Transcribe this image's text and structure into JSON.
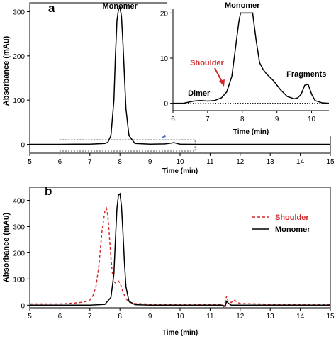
{
  "chart_data": [
    {
      "panel": "a",
      "type": "line",
      "xlabel": "Time (min)",
      "ylabel": "Absorbance (mAu)",
      "xlim": [
        5,
        15
      ],
      "ylim": [
        -20,
        320
      ],
      "xticks": [
        5,
        6,
        7,
        8,
        9,
        10,
        11,
        12,
        13,
        14,
        15
      ],
      "yticks": [
        0,
        100,
        200,
        300
      ],
      "annotations": [
        "Monomer"
      ],
      "series": [
        {
          "color": "#000000",
          "x": [
            5,
            6,
            6.5,
            6.8,
            7.0,
            7.5,
            7.6,
            7.7,
            7.8,
            7.85,
            7.9,
            7.95,
            8.0,
            8.05,
            8.1,
            8.2,
            8.3,
            8.5,
            9.0,
            9.5,
            9.7,
            9.8,
            9.9,
            10.0,
            10.5,
            15
          ],
          "y": [
            0,
            0,
            0.5,
            0.6,
            0.5,
            2,
            5,
            20,
            100,
            200,
            280,
            305,
            310,
            290,
            230,
            80,
            20,
            2,
            0.5,
            1,
            3,
            4,
            2,
            0.5,
            0,
            0
          ]
        }
      ],
      "zoom_box_x": [
        6,
        10.5
      ],
      "inset": {
        "type": "line",
        "xlabel": "Time (min)",
        "xlim": [
          6,
          10.5
        ],
        "ylim": [
          -1,
          21
        ],
        "xticks": [
          6,
          7,
          8,
          9,
          10
        ],
        "yticks": [
          0,
          10,
          20
        ],
        "annotations": [
          "Monomer",
          "Shoulder",
          "Dimer",
          "Fragments"
        ],
        "baseline": 0,
        "series": [
          {
            "color": "#000000",
            "x": [
              6.0,
              6.3,
              6.6,
              6.8,
              7.0,
              7.2,
              7.4,
              7.55,
              7.7,
              7.8,
              7.9,
              7.95,
              8.05,
              8.2,
              8.3,
              8.4,
              8.5,
              8.6,
              8.7,
              8.9,
              9.1,
              9.3,
              9.5,
              9.6,
              9.7,
              9.8,
              9.9,
              10.0,
              10.1,
              10.3,
              10.5
            ],
            "y": [
              0,
              0,
              0.5,
              0.6,
              0.5,
              0.6,
              1.2,
              2.5,
              6,
              12,
              18,
              20,
              20,
              20,
              20,
              14,
              9,
              7.5,
              6.5,
              5,
              3,
              1.5,
              1,
              1.2,
              2,
              4,
              4.2,
              2,
              0.6,
              0.1,
              0
            ]
          }
        ]
      },
      "zoom_arrow_color": "#4a5fc1"
    },
    {
      "panel": "b",
      "type": "line",
      "xlabel": "Time (min)",
      "ylabel": "Absorbance (mAu)",
      "xlim": [
        5,
        15
      ],
      "ylim": [
        -10,
        450
      ],
      "xticks": [
        5,
        6,
        7,
        8,
        9,
        10,
        11,
        12,
        13,
        14,
        15
      ],
      "yticks": [
        0,
        100,
        200,
        300,
        400
      ],
      "legend_position": "right",
      "series": [
        {
          "name": "Shoulder",
          "color": "#d42a2a",
          "dash": "dashed",
          "x": [
            5,
            6,
            6.5,
            6.8,
            7.0,
            7.1,
            7.2,
            7.3,
            7.4,
            7.5,
            7.55,
            7.6,
            7.65,
            7.7,
            7.75,
            7.8,
            7.85,
            7.9,
            7.95,
            8.0,
            8.05,
            8.1,
            8.2,
            8.3,
            8.5,
            9.0,
            10.0,
            11.0,
            11.3,
            11.4,
            11.45,
            11.5,
            11.55,
            11.6,
            11.7,
            11.8,
            11.9,
            12.0,
            13.0,
            15
          ],
          "y": [
            5,
            5,
            8,
            12,
            20,
            35,
            70,
            150,
            280,
            360,
            370,
            340,
            260,
            180,
            120,
            90,
            85,
            90,
            92,
            85,
            70,
            50,
            25,
            12,
            6,
            4,
            4,
            4,
            4,
            0,
            -5,
            10,
            35,
            15,
            10,
            20,
            12,
            6,
            4,
            4
          ]
        },
        {
          "name": "Monomer",
          "color": "#000000",
          "dash": "solid",
          "x": [
            5,
            7.0,
            7.5,
            7.7,
            7.8,
            7.85,
            7.9,
            7.95,
            8.0,
            8.05,
            8.1,
            8.15,
            8.2,
            8.3,
            8.5,
            9.0,
            11.0,
            11.4,
            11.5,
            11.55,
            11.6,
            11.7,
            15
          ],
          "y": [
            0,
            0,
            3,
            30,
            120,
            250,
            370,
            420,
            425,
            380,
            280,
            160,
            70,
            15,
            2,
            0,
            0,
            0,
            -5,
            15,
            8,
            0,
            0
          ]
        }
      ]
    }
  ],
  "panel_labels": {
    "a": "a",
    "b": "b"
  }
}
